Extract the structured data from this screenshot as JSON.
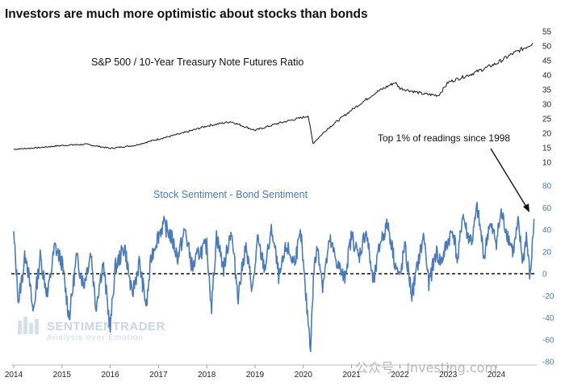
{
  "title": "Investors are much more optimistic about stocks than bonds",
  "chart_data": [
    {
      "type": "line",
      "title": "S&P 500 / 10-Year Treasury Note Futures Ratio",
      "color": "#111111",
      "ylim": [
        10,
        55
      ],
      "yticks": [
        10,
        15,
        20,
        25,
        30,
        35,
        40,
        45,
        50,
        55
      ],
      "x": [
        2014.0,
        2014.5,
        2015.0,
        2015.5,
        2016.0,
        2016.5,
        2017.0,
        2017.5,
        2018.0,
        2018.5,
        2019.0,
        2019.5,
        2020.0,
        2020.1,
        2020.2,
        2020.5,
        2021.0,
        2021.5,
        2021.9,
        2022.0,
        2022.5,
        2022.8,
        2023.0,
        2023.5,
        2024.0,
        2024.3,
        2024.6,
        2024.75
      ],
      "values": [
        14.5,
        15.0,
        15.8,
        16.2,
        14.8,
        15.8,
        18.0,
        20.0,
        22.5,
        24.0,
        21.0,
        23.5,
        25.5,
        26.0,
        16.5,
        21.5,
        28.0,
        34.0,
        37.5,
        35.5,
        33.5,
        33.0,
        37.5,
        40.5,
        44.0,
        47.0,
        49.5,
        51.0
      ]
    },
    {
      "type": "line",
      "title": "Stock Sentiment - Bond Sentiment",
      "color": "#4a7ab8",
      "ylim": [
        -80,
        80
      ],
      "yticks": [
        -80,
        -60,
        -40,
        -20,
        0,
        20,
        40,
        60,
        80
      ],
      "reference_line": 0,
      "x": [
        2014.0,
        2014.1,
        2014.25,
        2014.4,
        2014.55,
        2014.7,
        2014.85,
        2015.0,
        2015.15,
        2015.3,
        2015.45,
        2015.6,
        2015.7,
        2015.85,
        2016.0,
        2016.1,
        2016.3,
        2016.45,
        2016.6,
        2016.75,
        2016.85,
        2016.95,
        2017.1,
        2017.25,
        2017.4,
        2017.55,
        2017.7,
        2017.85,
        2018.0,
        2018.1,
        2018.2,
        2018.35,
        2018.5,
        2018.65,
        2018.8,
        2018.95,
        2019.05,
        2019.2,
        2019.35,
        2019.5,
        2019.65,
        2019.8,
        2019.95,
        2020.05,
        2020.15,
        2020.22,
        2020.3,
        2020.4,
        2020.55,
        2020.7,
        2020.85,
        2021.0,
        2021.15,
        2021.3,
        2021.45,
        2021.6,
        2021.75,
        2021.9,
        2022.0,
        2022.1,
        2022.25,
        2022.4,
        2022.5,
        2022.6,
        2022.75,
        2022.85,
        2023.0,
        2023.1,
        2023.2,
        2023.3,
        2023.4,
        2023.5,
        2023.6,
        2023.75,
        2023.85,
        2024.0,
        2024.1,
        2024.2,
        2024.35,
        2024.45,
        2024.55,
        2024.62,
        2024.7,
        2024.78
      ],
      "values": [
        35,
        -25,
        20,
        -35,
        15,
        -20,
        25,
        10,
        -40,
        15,
        -10,
        20,
        -30,
        10,
        -50,
        5,
        25,
        -20,
        10,
        -30,
        15,
        30,
        45,
        35,
        15,
        40,
        5,
        20,
        25,
        -30,
        35,
        5,
        40,
        -20,
        25,
        -15,
        30,
        5,
        40,
        -5,
        25,
        10,
        35,
        -20,
        -65,
        5,
        25,
        -10,
        30,
        10,
        -5,
        35,
        15,
        40,
        -10,
        30,
        45,
        10,
        -5,
        25,
        -20,
        15,
        35,
        -10,
        20,
        10,
        30,
        40,
        10,
        55,
        35,
        30,
        60,
        15,
        45,
        30,
        55,
        40,
        20,
        45,
        10,
        35,
        -5,
        50
      ],
      "annotation": "Top 1% of readings since 1998"
    }
  ],
  "x_labels": [
    "2014",
    "2015",
    "2016",
    "2017",
    "2018",
    "2019",
    "2020",
    "2021",
    "2022",
    "2023",
    "2024"
  ],
  "logo": {
    "name": "SENTIMENTRADER",
    "tagline": "Analysis over Emotion"
  },
  "watermark": "公众号 · Investing.com"
}
